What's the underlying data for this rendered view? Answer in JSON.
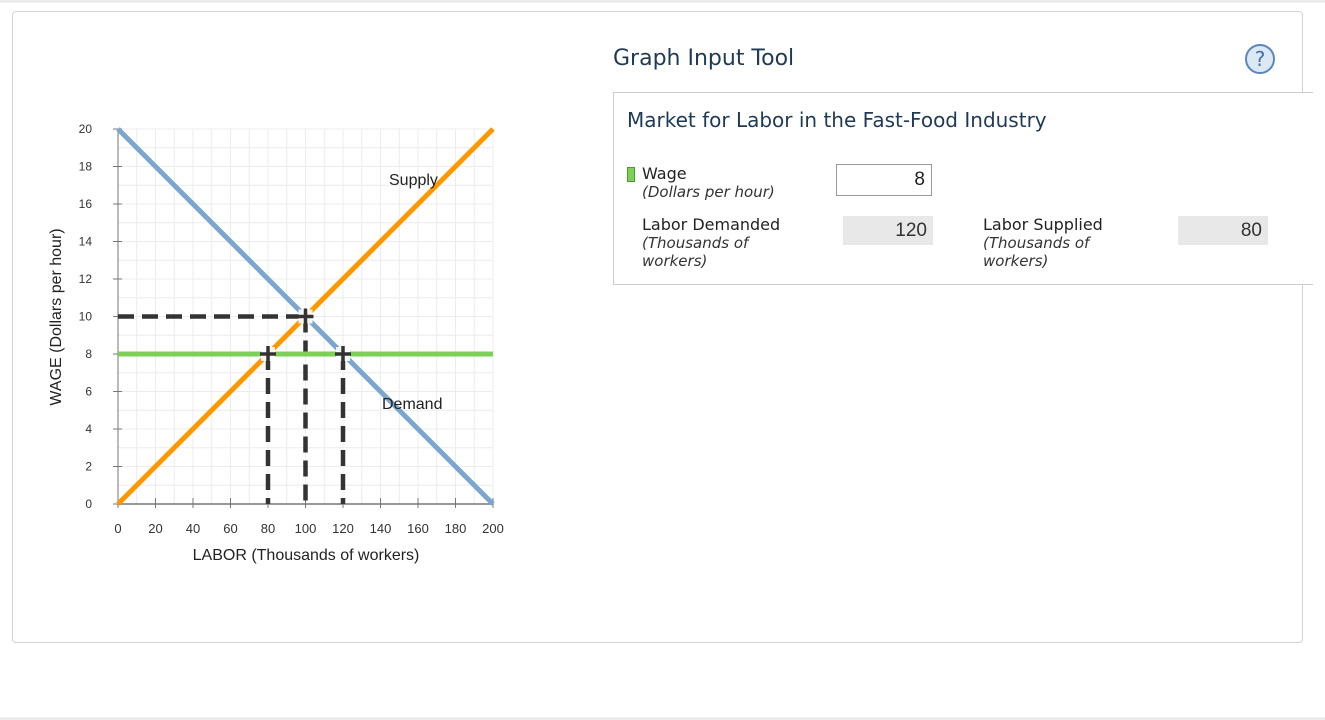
{
  "tool": {
    "title": "Graph Input Tool",
    "help_glyph": "?",
    "box_title": "Market for Labor in the Fast-Food Industry",
    "wage_label": "Wage",
    "wage_unit": "(Dollars per hour)",
    "wage_value": "8",
    "demanded_label": "Labor Demanded",
    "demanded_unit_1": "(Thousands of",
    "demanded_unit_2": "workers)",
    "demanded_value": "120",
    "supplied_label": "Labor Supplied",
    "supplied_unit_1": "(Thousands of",
    "supplied_unit_2": "workers)",
    "supplied_value": "80"
  },
  "colors": {
    "supply": "#ff9800",
    "demand": "#7ba7cf",
    "wage_line": "#7cd058",
    "marker": "#333333"
  },
  "chart_data": {
    "type": "line",
    "xlabel": "LABOR (Thousands of workers)",
    "ylabel": "WAGE (Dollars per hour)",
    "xlim": [
      0,
      200
    ],
    "ylim": [
      0,
      20
    ],
    "xticks": [
      0,
      20,
      40,
      60,
      80,
      100,
      120,
      140,
      160,
      180,
      200
    ],
    "yticks": [
      0,
      2,
      4,
      6,
      8,
      10,
      12,
      14,
      16,
      18,
      20
    ],
    "grid": true,
    "series": [
      {
        "name": "Supply",
        "points": [
          [
            0,
            0
          ],
          [
            200,
            20
          ]
        ]
      },
      {
        "name": "Demand",
        "points": [
          [
            0,
            20
          ],
          [
            200,
            0
          ]
        ]
      },
      {
        "name": "",
        "points": [
          [
            0,
            8
          ],
          [
            200,
            8
          ]
        ]
      }
    ],
    "markers": [
      {
        "x": 100,
        "y": 10
      },
      {
        "x": 80,
        "y": 8
      },
      {
        "x": 120,
        "y": 8
      }
    ]
  }
}
